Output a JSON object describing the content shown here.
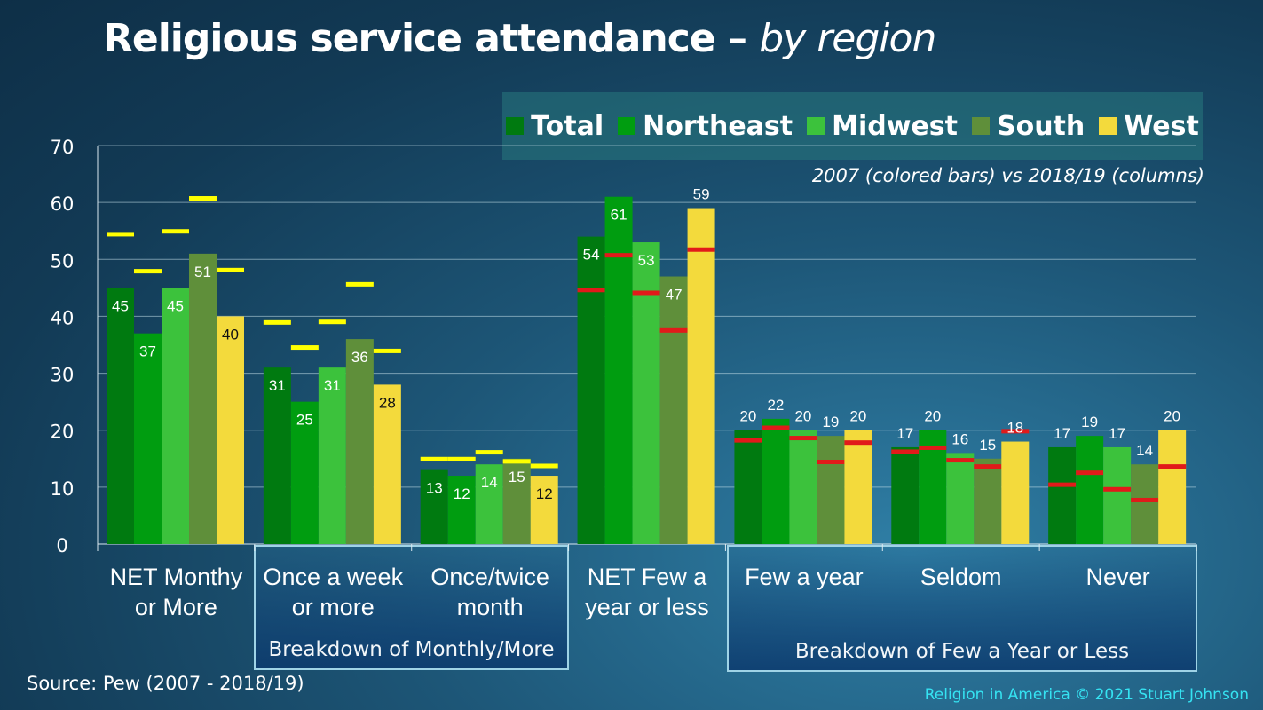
{
  "title_main": "Religious service attendance",
  "title_dash": " – ",
  "title_ital": "by region",
  "subtitle": "2007 (colored bars) vs 2018/19 (columns)",
  "source": "Source: Pew (2007 - 2018/19)",
  "credit": "Religion in America © 2021 Stuart Johnson",
  "group_boxes": [
    {
      "label": "Breakdown of Monthly/More"
    },
    {
      "label": "Breakdown of Few a Year or Less"
    }
  ],
  "chart_data": {
    "type": "bar",
    "categories": [
      [
        "NET Monthy",
        "or More"
      ],
      [
        "Once a week",
        "or more"
      ],
      [
        "Once/twice",
        "month"
      ],
      [
        "NET Few a",
        "year or less"
      ],
      [
        "Few a year"
      ],
      [
        "Seldom"
      ],
      [
        "Never"
      ]
    ],
    "ylim": [
      0,
      70
    ],
    "yticks": [
      0,
      10,
      20,
      30,
      40,
      50,
      60,
      70
    ],
    "grid": true,
    "legend_position": "top-right",
    "series": [
      {
        "name": "Total",
        "color": "#007a10",
        "values": [
          45,
          31,
          13,
          54,
          20,
          17,
          17
        ],
        "values_2007": [
          54.5,
          39,
          15,
          44.7,
          18.3,
          16.3,
          10.5
        ]
      },
      {
        "name": "Northeast",
        "color": "#009d10",
        "values": [
          37,
          25,
          12,
          61,
          22,
          20,
          19
        ],
        "values_2007": [
          48,
          34.6,
          15,
          50.8,
          20.5,
          17,
          12.6
        ]
      },
      {
        "name": "Midwest",
        "color": "#3cc23c",
        "values": [
          45,
          31,
          14,
          53,
          20,
          16,
          17
        ],
        "values_2007": [
          55,
          39.1,
          16.2,
          44.2,
          18.7,
          14.8,
          9.7
        ]
      },
      {
        "name": "South",
        "color": "#5f8f3a",
        "values": [
          51,
          36,
          15,
          47,
          19,
          15,
          14
        ],
        "values_2007": [
          60.8,
          45.7,
          14.6,
          37.6,
          14.5,
          13.7,
          7.8
        ]
      },
      {
        "name": "West",
        "color": "#f3da3c",
        "values": [
          40,
          28,
          12,
          59,
          20,
          18,
          20
        ],
        "values_2007": [
          48.2,
          34,
          13.8,
          51.8,
          17.9,
          19.9,
          13.7
        ]
      }
    ],
    "marker_colors": {
      "2007_high": "#ffff00",
      "2007_low": "#e11a1a"
    }
  }
}
